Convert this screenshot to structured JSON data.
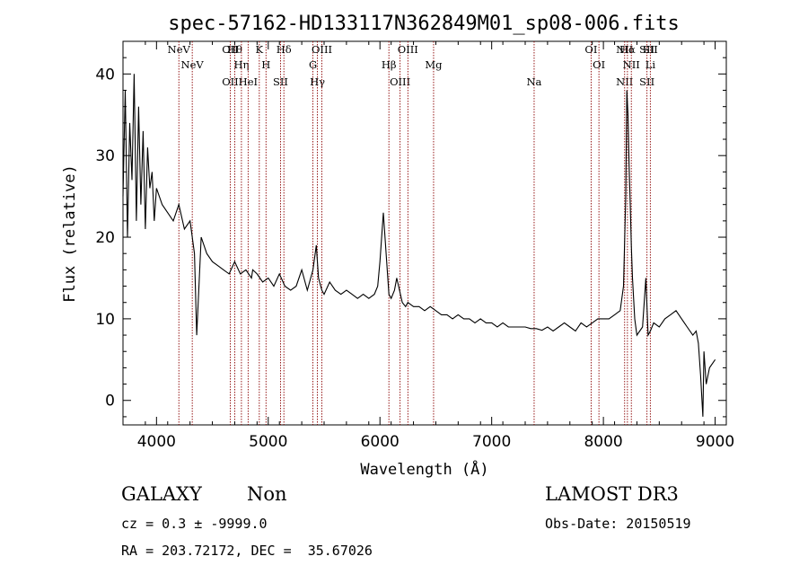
{
  "chart_data": {
    "type": "line",
    "title": "spec-57162-HD133117N362849M01_sp08-006.fits",
    "xlabel": "Wavelength (Å)",
    "ylabel": "Flux (relative)",
    "xlim": [
      3700,
      9100
    ],
    "ylim": [
      -3,
      44
    ],
    "xticks": [
      4000,
      5000,
      6000,
      7000,
      8000,
      9000
    ],
    "yticks": [
      0,
      10,
      20,
      30,
      40
    ],
    "grid": false,
    "series": [
      {
        "color": "#000000",
        "x": [
          3700,
          3720,
          3740,
          3760,
          3780,
          3800,
          3820,
          3840,
          3860,
          3880,
          3900,
          3920,
          3940,
          3960,
          3980,
          4000,
          4050,
          4100,
          4150,
          4200,
          4250,
          4300,
          4340,
          4360,
          4400,
          4450,
          4500,
          4550,
          4600,
          4650,
          4700,
          4750,
          4800,
          4850,
          4861,
          4900,
          4950,
          5000,
          5050,
          5100,
          5150,
          5200,
          5250,
          5300,
          5350,
          5400,
          5430,
          5450,
          5480,
          5500,
          5550,
          5600,
          5650,
          5700,
          5750,
          5800,
          5850,
          5900,
          5950,
          5980,
          6000,
          6030,
          6060,
          6080,
          6100,
          6130,
          6150,
          6200,
          6230,
          6250,
          6300,
          6350,
          6400,
          6450,
          6500,
          6550,
          6600,
          6650,
          6700,
          6750,
          6800,
          6850,
          6900,
          6950,
          7000,
          7050,
          7100,
          7150,
          7200,
          7250,
          7300,
          7350,
          7400,
          7450,
          7500,
          7550,
          7600,
          7650,
          7700,
          7750,
          7800,
          7850,
          7900,
          7950,
          8000,
          8050,
          8100,
          8150,
          8180,
          8200,
          8210,
          8220,
          8230,
          8240,
          8250,
          8260,
          8280,
          8300,
          8350,
          8380,
          8400,
          8420,
          8450,
          8500,
          8550,
          8600,
          8650,
          8700,
          8750,
          8800,
          8830,
          8850,
          8870,
          8890,
          8900,
          8920,
          8950,
          9000
        ],
        "y": [
          25,
          38,
          20,
          34,
          27,
          40,
          22,
          36,
          24,
          33,
          21,
          31,
          26,
          28,
          22,
          26,
          24,
          23,
          22,
          24,
          21,
          22,
          18,
          8,
          20,
          18,
          17,
          16.5,
          16,
          15.5,
          17,
          15.5,
          16,
          15,
          16,
          15.5,
          14.5,
          15,
          14,
          15.5,
          14,
          13.5,
          14,
          16,
          13.5,
          16,
          19,
          15,
          13.5,
          13,
          14.5,
          13.5,
          13,
          13.5,
          13,
          12.5,
          13,
          12.5,
          13,
          14,
          17,
          23,
          17,
          13,
          12.5,
          13.5,
          15,
          12,
          11.5,
          12,
          11.5,
          11.5,
          11,
          11.5,
          11,
          10.5,
          10.5,
          10,
          10.5,
          10,
          10,
          9.5,
          10,
          9.5,
          9.5,
          9,
          9.5,
          9,
          9,
          9,
          9,
          8.8,
          8.8,
          8.6,
          9,
          8.5,
          9,
          9.5,
          9,
          8.5,
          9.5,
          9,
          9.5,
          10,
          10,
          10,
          10.5,
          11,
          14,
          25,
          38,
          35,
          29,
          24,
          19,
          15,
          10,
          8,
          9,
          15,
          8,
          8.5,
          9.5,
          9,
          10,
          10.5,
          11,
          10,
          9,
          8,
          8.5,
          7,
          3,
          -2,
          6,
          2,
          4,
          5
        ]
      }
    ],
    "line_markers": [
      {
        "wavelength": 4200,
        "labels": [
          "NeV"
        ]
      },
      {
        "wavelength": 4320,
        "labels": [
          "NeV"
        ]
      },
      {
        "wavelength": 4660,
        "labels": [
          "OII",
          "OII"
        ]
      },
      {
        "wavelength": 4700,
        "labels": [
          "Hθ"
        ]
      },
      {
        "wavelength": 4760,
        "labels": [
          "Hη"
        ]
      },
      {
        "wavelength": 4820,
        "labels": [
          "HeI"
        ]
      },
      {
        "wavelength": 4920,
        "labels": [
          "K"
        ]
      },
      {
        "wavelength": 4980,
        "labels": [
          "H"
        ]
      },
      {
        "wavelength": 5110,
        "labels": [
          "SII"
        ]
      },
      {
        "wavelength": 5140,
        "labels": [
          "Hδ"
        ]
      },
      {
        "wavelength": 5400,
        "labels": [
          "G"
        ]
      },
      {
        "wavelength": 5440,
        "labels": [
          "Hγ"
        ]
      },
      {
        "wavelength": 5480,
        "labels": [
          "OIII"
        ]
      },
      {
        "wavelength": 6080,
        "labels": [
          "Hβ"
        ]
      },
      {
        "wavelength": 6180,
        "labels": [
          "OIII"
        ]
      },
      {
        "wavelength": 6250,
        "labels": [
          "OIII"
        ]
      },
      {
        "wavelength": 6480,
        "labels": [
          "Mg"
        ]
      },
      {
        "wavelength": 7380,
        "labels": [
          "Na"
        ]
      },
      {
        "wavelength": 7890,
        "labels": [
          "OI"
        ]
      },
      {
        "wavelength": 7960,
        "labels": [
          "OI"
        ]
      },
      {
        "wavelength": 8190,
        "labels": [
          "NII",
          "NII"
        ]
      },
      {
        "wavelength": 8215,
        "labels": [
          "Hα"
        ]
      },
      {
        "wavelength": 8250,
        "labels": [
          "NII"
        ]
      },
      {
        "wavelength": 8390,
        "labels": [
          "SII",
          "SII"
        ]
      },
      {
        "wavelength": 8420,
        "labels": [
          "SII",
          "Li"
        ]
      }
    ],
    "marker_color": "#8b0000"
  },
  "info": {
    "object_class": "GALAXY",
    "subclass": "Non",
    "survey": "LAMOST DR3",
    "cz_line": "cz = 0.3 ± -9999.0",
    "obs_date_line": "Obs-Date: 20150519",
    "coords_line": "RA = 203.72172, DEC =  35.67026"
  }
}
